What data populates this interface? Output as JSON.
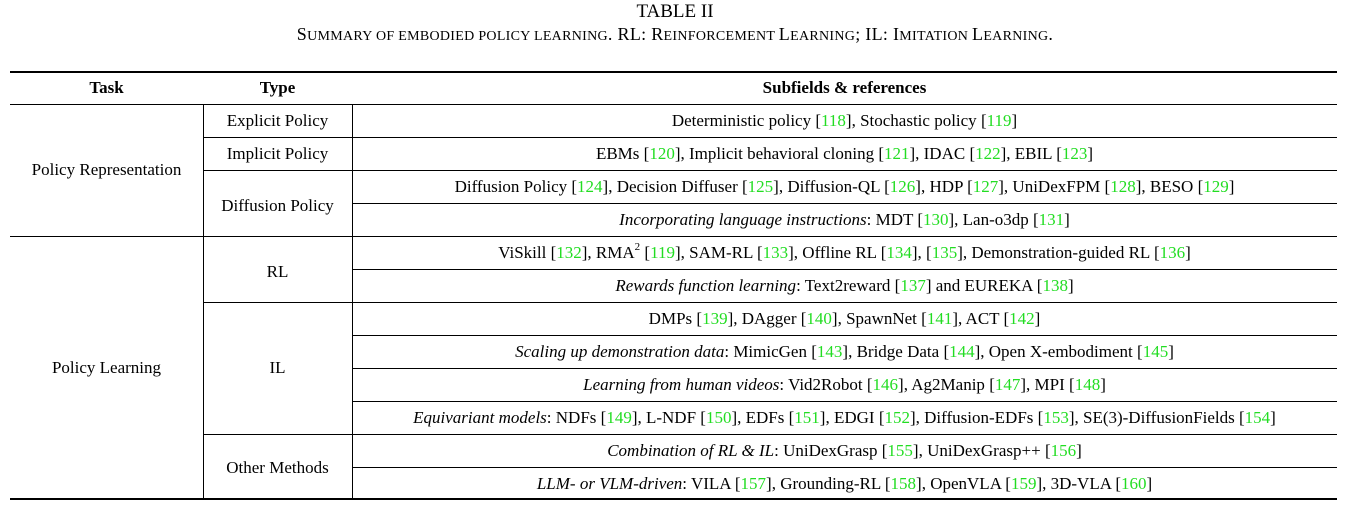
{
  "table_label": "TABLE II",
  "caption": {
    "prefix_big": "S",
    "prefix_small": "UMMARY OF EMBODIED POLICY LEARNING",
    "rl_big": ". RL: R",
    "rl_small": "EINFORCEMENT ",
    "rl_big2": "L",
    "rl_small2": "EARNING",
    "il_big": "; IL: I",
    "il_small": "MITATION ",
    "il_big2": "L",
    "il_small2": "EARNING",
    "end": "."
  },
  "headers": {
    "task": "Task",
    "type": "Type",
    "subfields": "Subfields & references"
  },
  "tasks": [
    "Policy Representation",
    "Policy Learning"
  ],
  "types": [
    "Explicit Policy",
    "Implicit Policy",
    "Diffusion Policy",
    "RL",
    "IL",
    "Other Methods"
  ],
  "rows": [
    [
      "Deterministic policy ",
      "[",
      "118",
      "], Stochastic policy ",
      "[",
      "119",
      "]"
    ],
    [
      "EBMs ",
      "[",
      "120",
      "], Implicit behavioral cloning ",
      "[",
      "121",
      "], IDAC ",
      "[",
      "122",
      "], EBIL ",
      "[",
      "123",
      "]"
    ],
    [
      "Diffusion Policy ",
      "[",
      "124",
      "], Decision Diffuser ",
      "[",
      "125",
      "], Diffusion-QL ",
      "[",
      "126",
      "], HDP ",
      "[",
      "127",
      "], UniDexFPM ",
      "[",
      "128",
      "], BESO ",
      "[",
      "129",
      "]"
    ],
    [
      "@Incorporating language instructions",
      ": MDT ",
      "[",
      "130",
      "], Lan-o3dp ",
      "[",
      "131",
      "]"
    ],
    [
      "ViSkill ",
      "[",
      "132",
      "], RMA",
      "^2",
      " ",
      "[",
      "119",
      "], SAM-RL ",
      "[",
      "133",
      "], Offline RL ",
      "[",
      "134",
      "], ",
      "[",
      "135",
      "], Demonstration-guided RL ",
      "[",
      "136",
      "]"
    ],
    [
      "@Rewards function learning",
      ": Text2reward ",
      "[",
      "137",
      "] and EUREKA ",
      "[",
      "138",
      "]"
    ],
    [
      "DMPs ",
      "[",
      "139",
      "], DAgger ",
      "[",
      "140",
      "], SpawnNet ",
      "[",
      "141",
      "], ACT ",
      "[",
      "142",
      "]"
    ],
    [
      "@Scaling up demonstration data",
      ": MimicGen ",
      "[",
      "143",
      "], Bridge Data ",
      "[",
      "144",
      "], Open X-embodiment ",
      "[",
      "145",
      "]"
    ],
    [
      "@Learning from human videos",
      ": Vid2Robot ",
      "[",
      "146",
      "], Ag2Manip ",
      "[",
      "147",
      "], MPI ",
      "[",
      "148",
      "]"
    ],
    [
      "@Equivariant models",
      ": NDFs ",
      "[",
      "149",
      "], L-NDF ",
      "[",
      "150",
      "], EDFs ",
      "[",
      "151",
      "], EDGI ",
      "[",
      "152",
      "], Diffusion-EDFs ",
      "[",
      "153",
      "], SE(3)-DiffusionFields ",
      "[",
      "154",
      "]"
    ],
    [
      "@Combination of RL & IL",
      ": UniDexGrasp ",
      "[",
      "155",
      "], UniDexGrasp++ ",
      "[",
      "156",
      "]"
    ],
    [
      "@LLM- or VLM-driven",
      ": VILA ",
      "[",
      "157",
      "], Grounding-RL ",
      "[",
      "158",
      "], OpenVLA ",
      "[",
      "159",
      "], 3D-VLA ",
      "[",
      "160",
      "]"
    ]
  ],
  "colors": {
    "reference": "#22dd22",
    "text": "#000000"
  }
}
